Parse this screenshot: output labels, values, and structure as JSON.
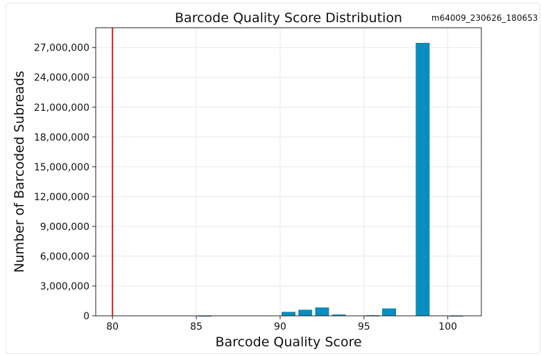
{
  "chart_data": {
    "type": "bar",
    "title": "Barcode Quality Score Distribution",
    "subtitle": "m64009_230626_180653",
    "xlabel": "Barcode Quality Score",
    "ylabel": "Number of Barcoded Subreads",
    "xlim": [
      79,
      102
    ],
    "ylim": [
      0,
      29000000
    ],
    "xticks": [
      80,
      85,
      90,
      95,
      100
    ],
    "xtick_labels": [
      "80",
      "85",
      "90",
      "95",
      "100"
    ],
    "yticks": [
      0,
      3000000,
      6000000,
      9000000,
      12000000,
      15000000,
      18000000,
      21000000,
      24000000,
      27000000
    ],
    "ytick_labels": [
      "0",
      "3,000,000",
      "6,000,000",
      "9,000,000",
      "12,000,000",
      "15,000,000",
      "18,000,000",
      "21,000,000",
      "24,000,000",
      "27,000,000"
    ],
    "grid": true,
    "bar_color": "#0a8ebf",
    "threshold_line": {
      "x": 80,
      "color": "#d61f1f"
    },
    "bars": [
      {
        "x": 85.5,
        "value": 20000
      },
      {
        "x": 90.5,
        "value": 380000
      },
      {
        "x": 91.5,
        "value": 590000
      },
      {
        "x": 92.5,
        "value": 820000
      },
      {
        "x": 93.5,
        "value": 110000
      },
      {
        "x": 95.5,
        "value": 40000
      },
      {
        "x": 96.5,
        "value": 720000
      },
      {
        "x": 98.5,
        "value": 27450000
      },
      {
        "x": 100.5,
        "value": 20000
      }
    ]
  }
}
